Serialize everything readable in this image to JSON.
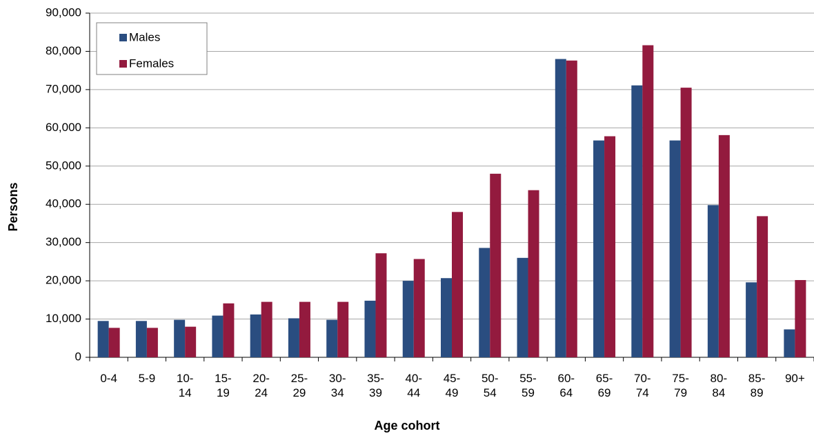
{
  "chart_data": {
    "type": "bar",
    "x_label": "Age cohort",
    "y_label": "Persons",
    "categories": [
      "0-4",
      "5-9",
      "10-\n14",
      "15-\n19",
      "20-\n24",
      "25-\n29",
      "30-\n34",
      "35-\n39",
      "40-\n44",
      "45-\n49",
      "50-\n54",
      "55-\n59",
      "60-\n64",
      "65-\n69",
      "70-\n74",
      "75-\n79",
      "80-\n84",
      "85-\n89",
      "90+"
    ],
    "series": [
      {
        "name": "Males",
        "color": "#2a4d80",
        "values": [
          9500,
          9500,
          9800,
          10900,
          11200,
          10200,
          9800,
          14800,
          20000,
          20700,
          28600,
          26000,
          78000,
          56700,
          71100,
          56700,
          39800,
          19600,
          7300
        ]
      },
      {
        "name": "Females",
        "color": "#931a3e",
        "values": [
          7700,
          7700,
          8000,
          14100,
          14500,
          14500,
          14500,
          27200,
          25700,
          38000,
          48000,
          43700,
          77600,
          57800,
          81600,
          70500,
          58100,
          36900,
          20200
        ]
      }
    ],
    "ylim": [
      0,
      90000
    ],
    "yticks": [
      0,
      {
        "value": 10000,
        "label": "10,000"
      },
      {
        "value": 20000,
        "label": "20,000"
      },
      {
        "value": 30000,
        "label": "30,000"
      },
      {
        "value": 40000,
        "label": "40,000"
      },
      {
        "value": 50000,
        "label": "50,000"
      },
      {
        "value": 60000,
        "label": "60,000"
      },
      {
        "value": 70000,
        "label": "70,000"
      },
      {
        "value": 80000,
        "label": "80,000"
      },
      {
        "value": 90000,
        "label": "90,000"
      }
    ],
    "grid": true,
    "legend": "upper-left"
  }
}
